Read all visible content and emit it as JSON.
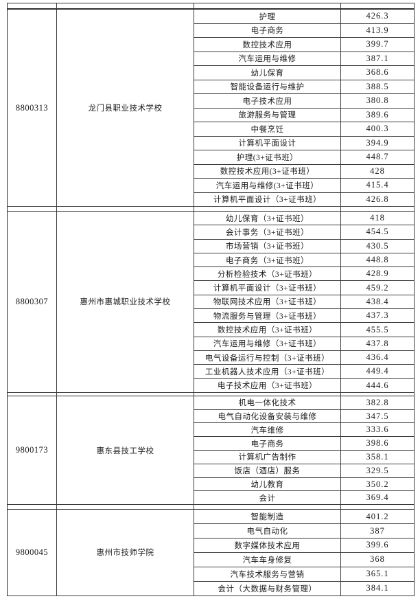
{
  "table": {
    "blocks": [
      {
        "code": "8800313",
        "school": "龙门县职业技术学校",
        "rows": [
          {
            "major": "护理",
            "score": "426.3"
          },
          {
            "major": "电子商务",
            "score": "413.9"
          },
          {
            "major": "数控技术应用",
            "score": "399.7"
          },
          {
            "major": "汽车运用与维修",
            "score": "387.1"
          },
          {
            "major": "幼儿保育",
            "score": "368.6"
          },
          {
            "major": "智能设备运行与维护",
            "score": "388.5"
          },
          {
            "major": "电子技术应用",
            "score": "380.8"
          },
          {
            "major": "旅游服务与管理",
            "score": "389.6"
          },
          {
            "major": "中餐烹饪",
            "score": "400.3"
          },
          {
            "major": "计算机平面设计",
            "score": "394.9"
          },
          {
            "major": "护理(3+证书班）",
            "score": "448.7"
          },
          {
            "major": "数控技术应用(3+证书班）",
            "score": "428"
          },
          {
            "major": "汽车运用与维修(3+证书班）",
            "score": "415.4"
          },
          {
            "major": "计算机平面设计（3+证书班）",
            "score": "426.8"
          }
        ]
      },
      {
        "code": "8800307",
        "school": "惠州市惠城职业技术学校",
        "rows": [
          {
            "major": "幼儿保育（3+证书班）",
            "score": "418"
          },
          {
            "major": "会计事务（3+证书班）",
            "score": "454.5"
          },
          {
            "major": "市场营销（3+证书班）",
            "score": "430.5"
          },
          {
            "major": "电子商务（3+证书班）",
            "score": "448.8"
          },
          {
            "major": "分析检验技术（3+证书班）",
            "score": "428.9"
          },
          {
            "major": "计算机平面设计（3+证书班）",
            "score": "459.2"
          },
          {
            "major": "物联网技术应用（3+证书班）",
            "score": "438.4"
          },
          {
            "major": "物流服务与管理（3+证书班）",
            "score": "437.3"
          },
          {
            "major": "数控技术应用（3+证书班）",
            "score": "455.5"
          },
          {
            "major": "汽车运用与维修（3+证书班）",
            "score": "437.8"
          },
          {
            "major": "电气设备运行与控制（3+证书班）",
            "score": "436.4"
          },
          {
            "major": "工业机器人技术应用（3+证书班）",
            "score": "449.4"
          },
          {
            "major": "电子技术应用（3+证书班）",
            "score": "444.6"
          }
        ]
      },
      {
        "code": "9800173",
        "school": "惠东县技工学校",
        "rows": [
          {
            "major": "机电一体化技术",
            "score": "382.8"
          },
          {
            "major": "电气自动化设备安装与维修",
            "score": "347.5"
          },
          {
            "major": "汽车维修",
            "score": "333.6"
          },
          {
            "major": "电子商务",
            "score": "398.6"
          },
          {
            "major": "计算机广告制作",
            "score": "358.1"
          },
          {
            "major": "饭店（酒店）服务",
            "score": "329.5"
          },
          {
            "major": "幼儿教育",
            "score": "350.2"
          },
          {
            "major": "会计",
            "score": "369.4"
          }
        ]
      },
      {
        "code": "9800045",
        "school": "惠州市技师学院",
        "rows": [
          {
            "major": "智能制造",
            "score": "401.2"
          },
          {
            "major": "电气自动化",
            "score": "387"
          },
          {
            "major": "数字媒体技术应用",
            "score": "399.6"
          },
          {
            "major": "汽车车身修复",
            "score": "368"
          },
          {
            "major": "汽车技术服务与营销",
            "score": "365.1"
          },
          {
            "major": "会计（大数据与财务管理）",
            "score": "384.1"
          }
        ]
      }
    ]
  }
}
